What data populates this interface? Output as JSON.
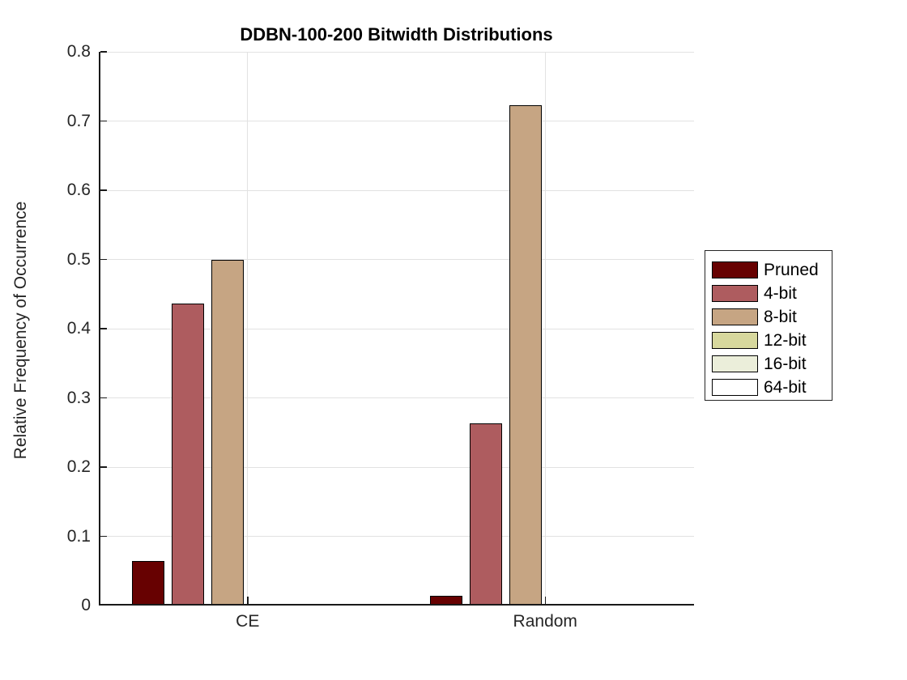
{
  "chart_data": {
    "type": "bar",
    "title": "DDBN-100-200 Bitwidth Distributions",
    "xlabel": "",
    "ylabel": "Relative Frequency of Occurrence",
    "categories": [
      "CE",
      "Random"
    ],
    "series": [
      {
        "name": "Pruned",
        "color": "#670101",
        "values": [
          0.064,
          0.014
        ]
      },
      {
        "name": "4-bit",
        "color": "#ae5c5f",
        "values": [
          0.436,
          0.263
        ]
      },
      {
        "name": "8-bit",
        "color": "#c6a583",
        "values": [
          0.5,
          0.723
        ]
      },
      {
        "name": "12-bit",
        "color": "#d7d89d",
        "values": [
          0.0,
          0.0
        ]
      },
      {
        "name": "16-bit",
        "color": "#ebeeda",
        "values": [
          0.0,
          0.0
        ]
      },
      {
        "name": "64-bit",
        "color": "#ffffff",
        "values": [
          0.0,
          0.0
        ]
      }
    ],
    "ylim": [
      0,
      0.8
    ],
    "yticks": [
      0,
      0.1,
      0.2,
      0.3,
      0.4,
      0.5,
      0.6,
      0.7,
      0.8
    ],
    "ytick_labels": [
      "0",
      "0.1",
      "0.2",
      "0.3",
      "0.4",
      "0.5",
      "0.6",
      "0.7",
      "0.8"
    ],
    "grid": true,
    "legend_position": "right-outside"
  },
  "colors": {
    "axis": "#1a1a1a",
    "grid": "#e2e2e2",
    "bar_edge": "#000000",
    "tick_text": "#262626",
    "background": "#ffffff"
  }
}
